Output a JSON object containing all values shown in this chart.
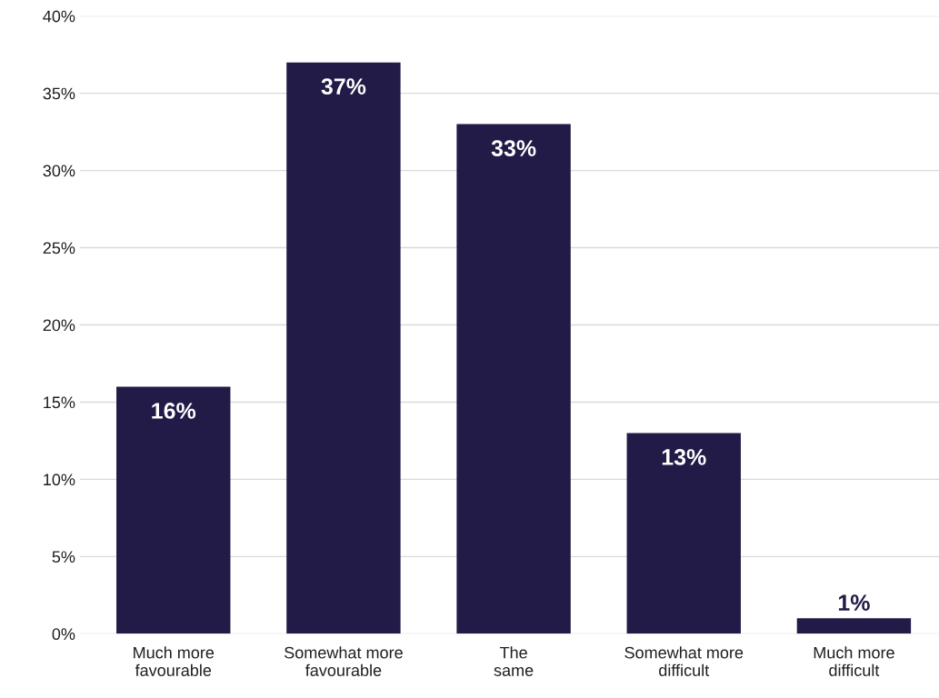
{
  "chart_data": {
    "type": "bar",
    "categories": [
      "Much more favourable",
      "Somewhat more favourable",
      "The same",
      "Somewhat more difficult",
      "Much more difficult"
    ],
    "values": [
      16,
      37,
      33,
      13,
      1
    ],
    "value_labels": [
      "16%",
      "37%",
      "33%",
      "13%",
      "1%"
    ],
    "color": "#221a47",
    "ylim": [
      0,
      40
    ],
    "yticks": [
      {
        "value": 0,
        "label": "0%"
      },
      {
        "value": 5,
        "label": "5%"
      },
      {
        "value": 10,
        "label": "10%"
      },
      {
        "value": 15,
        "label": "15%"
      },
      {
        "value": 20,
        "label": "20%"
      },
      {
        "value": 25,
        "label": "25%"
      },
      {
        "value": 30,
        "label": "30%"
      },
      {
        "value": 35,
        "label": "35%"
      },
      {
        "value": 40,
        "label": "40%"
      }
    ],
    "grid": "y"
  }
}
